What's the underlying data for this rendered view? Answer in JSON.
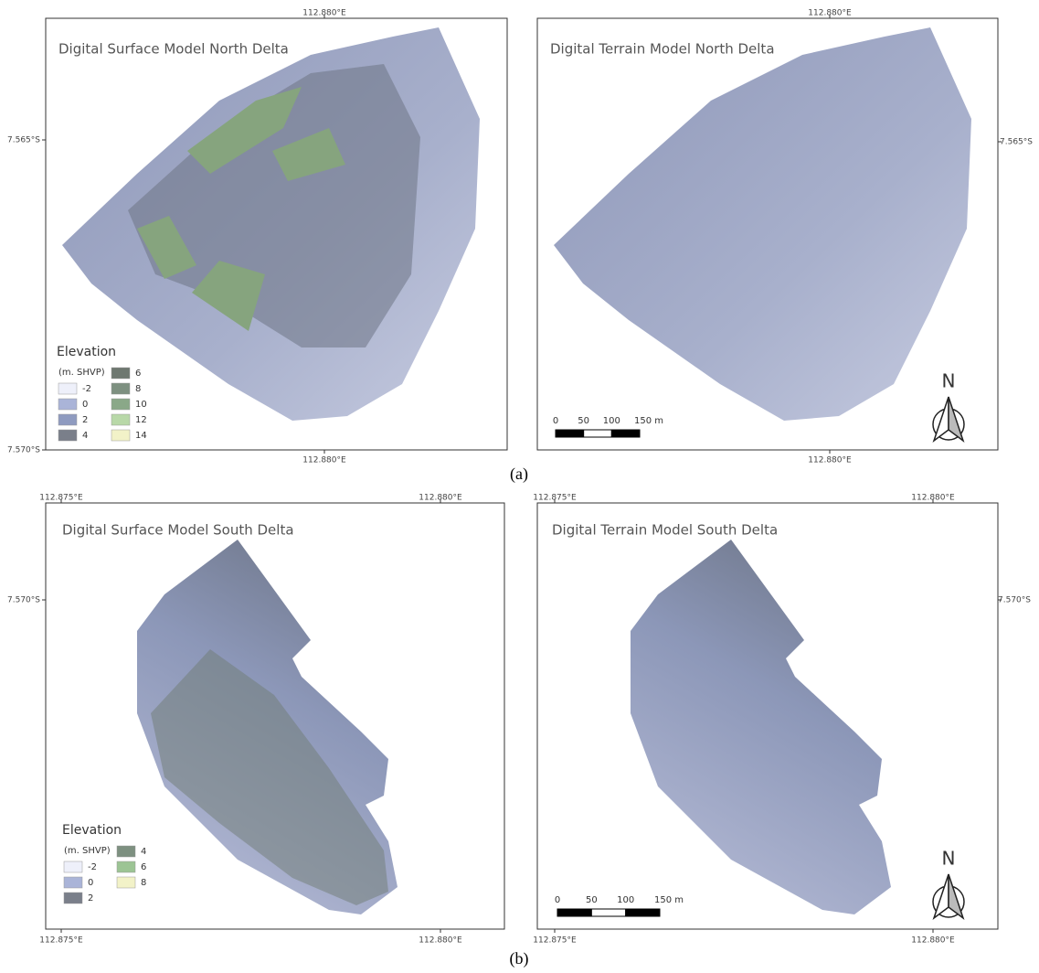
{
  "captions": [
    "(a)",
    "(b)"
  ],
  "panels": [
    {
      "title": "Digital Surface Model  North Delta",
      "top_labels": [
        "112.880°E"
      ],
      "left_labels": [
        "7.565°S",
        "7.570°S"
      ],
      "right_labels": [],
      "bottom_labels": [
        "112.880°E"
      ],
      "legend": {
        "title": "Elevation",
        "unit": "(m. SHVP)",
        "items": [
          {
            "label": "-2",
            "color": "#eef0fa"
          },
          {
            "label": "0",
            "color": "#aab4d8"
          },
          {
            "label": "2",
            "color": "#8f9bc0"
          },
          {
            "label": "4",
            "color": "#7a7f8a"
          },
          {
            "label": "6",
            "color": "#6e7870"
          },
          {
            "label": "8",
            "color": "#7d9080"
          },
          {
            "label": "10",
            "color": "#8aa888"
          },
          {
            "label": "12",
            "color": "#b8d8a8"
          },
          {
            "label": "14",
            "color": "#f2f2c8"
          }
        ]
      }
    },
    {
      "title": "Digital Terrain Model  North Delta",
      "top_labels": [
        "112.880°E"
      ],
      "left_labels": [],
      "right_labels": [
        "7.565°S"
      ],
      "bottom_labels": [
        "112.880°E"
      ],
      "scale_bar": [
        "0",
        "50",
        "100",
        "150 m"
      ],
      "north": "N"
    },
    {
      "title": "Digital Surface Model South Delta",
      "top_labels": [
        "112.875°E",
        "112.880°E"
      ],
      "left_labels": [
        "7.570°S"
      ],
      "right_labels": [],
      "bottom_labels": [
        "112.875°E",
        "112.880°E"
      ],
      "legend": {
        "title": "Elevation",
        "unit": "(m. SHVP)",
        "items": [
          {
            "label": "-2",
            "color": "#eef0fa"
          },
          {
            "label": "0",
            "color": "#aab4d8"
          },
          {
            "label": "2",
            "color": "#7a7f8a"
          },
          {
            "label": "4",
            "color": "#7d9080"
          },
          {
            "label": "6",
            "color": "#9cc494"
          },
          {
            "label": "8",
            "color": "#f2f2c8"
          }
        ]
      }
    },
    {
      "title": "Digital Terrain Model South Delta",
      "top_labels": [
        "112.875°E",
        "112.880°E"
      ],
      "left_labels": [],
      "right_labels": [
        "7.570°S"
      ],
      "bottom_labels": [
        "112.875°E",
        "112.880°E"
      ],
      "scale_bar": [
        "0",
        "50",
        "100",
        "150 m"
      ],
      "north": "N"
    }
  ]
}
